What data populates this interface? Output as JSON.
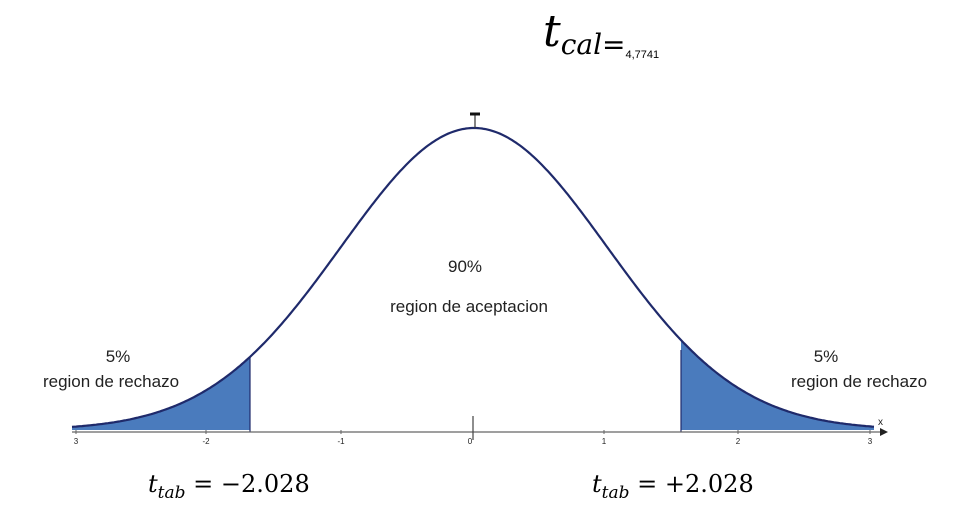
{
  "tcal": {
    "symbol": "t",
    "subscript": "cal=",
    "value": "4,7741"
  },
  "center": {
    "percent": "90%",
    "label": "region de aceptacion"
  },
  "left_tail": {
    "percent": "5%",
    "label": "region de rechazo"
  },
  "right_tail": {
    "percent": "5%",
    "label": "region de rechazo"
  },
  "ttab_left": {
    "symbol": "t",
    "subscript": "tab",
    "value": "= −2.028"
  },
  "ttab_right": {
    "symbol": "t",
    "subscript": "tab",
    "value": "= +2.028"
  },
  "axis": {
    "ticks": [
      "3",
      "-2",
      "-1",
      "0",
      "1",
      "2",
      "3"
    ],
    "x_label": "x"
  },
  "colors": {
    "curve": "#1f2a6b",
    "shade": "#4a7bbd",
    "axis": "#666666"
  }
}
